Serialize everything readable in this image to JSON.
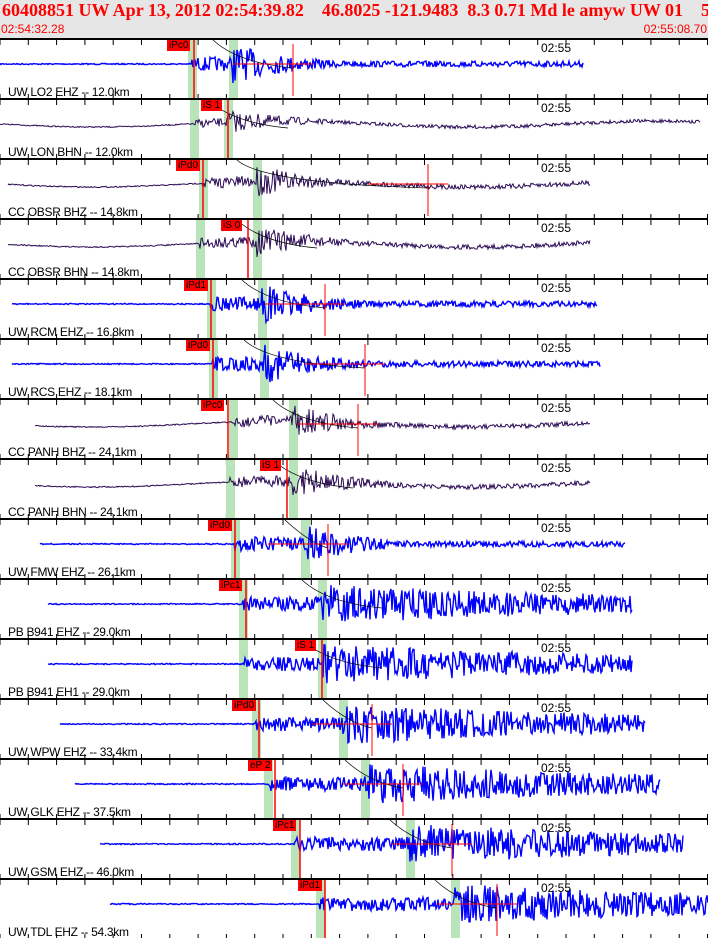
{
  "header": {
    "title": "60408851 UW Apr 13, 2012 02:54:39.82    46.8025 -121.9483  8.3 0.71 Md le amyw UW 01    5",
    "start_time": "02:54:32.28",
    "end_time": "02:55:08.70"
  },
  "colors": {
    "header_text": "#ff0000",
    "vertical": "#0000ff",
    "horizontal": "#2a0a55",
    "pick": "#ff0000",
    "pick_window": "#b9e3b9"
  },
  "traces": [
    {
      "station": "UW LO2 EHZ -- 12.0km",
      "clock": "02:55",
      "pick": "iPc0",
      "comp": "v"
    },
    {
      "station": "UW LON BHN -- 12.0km",
      "clock": "02:55",
      "pick": "iS 1",
      "comp": "h"
    },
    {
      "station": "CC OBSR BHZ -- 14.8km",
      "clock": "02:55",
      "pick": "iPd0",
      "comp": "h"
    },
    {
      "station": "CC OBSR BHN -- 14.8km",
      "clock": "02:55",
      "pick": "iS 0",
      "comp": "h"
    },
    {
      "station": "UW RCM EHZ -- 16.8km",
      "clock": "02:55",
      "pick": "iPd1",
      "comp": "v"
    },
    {
      "station": "UW RCS EHZ -- 18.1km",
      "clock": "02:55",
      "pick": "iPd0",
      "comp": "v"
    },
    {
      "station": "CC PANH BHZ -- 24.1km",
      "clock": "02:55",
      "pick": "iPc0",
      "comp": "h"
    },
    {
      "station": "CC PANH BHN -- 24.1km",
      "clock": "02:55",
      "pick": "iS 1",
      "comp": "h"
    },
    {
      "station": "UW FMW EHZ -- 26.1km",
      "clock": "02:55",
      "pick": "iPd0",
      "comp": "v"
    },
    {
      "station": "PB B941 EHZ -- 29.0km",
      "clock": "02:55",
      "pick": "iPc1",
      "comp": "v"
    },
    {
      "station": "PB B941 EH1 -- 29.0km",
      "clock": "02:55",
      "pick": "iS 1",
      "comp": "v"
    },
    {
      "station": "UW WPW EHZ -- 33.4km",
      "clock": "02:55",
      "pick": "iPd0",
      "comp": "v"
    },
    {
      "station": "UW GLK EHZ -- 37.5km",
      "clock": "02:55",
      "pick": "eP 2",
      "comp": "v"
    },
    {
      "station": "UW GSM EHZ -- 46.0km",
      "clock": "02:55",
      "pick": "iPc1",
      "comp": "v"
    },
    {
      "station": "UW TDL EHZ -- 54.3km",
      "clock": "02:55",
      "pick": "iPd1",
      "comp": "v"
    }
  ]
}
